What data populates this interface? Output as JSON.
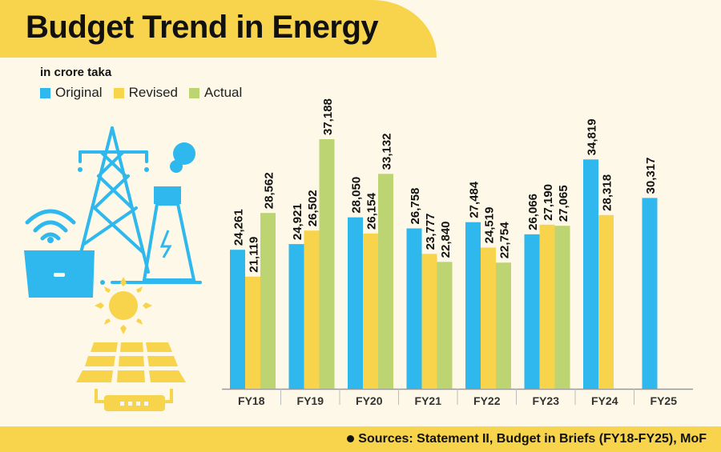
{
  "header": {
    "title": "Budget Trend in Energy",
    "unit": "in crore taka"
  },
  "colors": {
    "original": "#2eb8ee",
    "revised": "#f7d44b",
    "actual": "#bcd472",
    "band": "#f7d44b",
    "background": "#fdf8e7"
  },
  "footer": {
    "source": "Sources: Statement II, Budget in Briefs (FY18-FY25), MoF"
  },
  "chart_data": {
    "type": "bar",
    "title": "Budget Trend in Energy",
    "ylabel": "in crore taka",
    "xlabel": "",
    "categories": [
      "FY18",
      "FY19",
      "FY20",
      "FY21",
      "FY22",
      "FY23",
      "FY24",
      "FY25"
    ],
    "series": [
      {
        "name": "Original",
        "color": "#2eb8ee",
        "values": [
          24261,
          24921,
          28050,
          26758,
          27484,
          26066,
          34819,
          30317
        ],
        "labels": [
          "24,261",
          "24,921",
          "28,050",
          "26,758",
          "27,484",
          "26,066",
          "34,819",
          "30,317"
        ]
      },
      {
        "name": "Revised",
        "color": "#f7d44b",
        "values": [
          21119,
          26502,
          26154,
          23777,
          24519,
          27190,
          28318,
          null
        ],
        "labels": [
          "21,119",
          "26,502",
          "26,154",
          "23,777",
          "24,519",
          "27,190",
          "28,318",
          null
        ]
      },
      {
        "name": "Actual",
        "color": "#bcd472",
        "values": [
          28562,
          37188,
          33132,
          22840,
          22754,
          27065,
          null,
          null
        ],
        "labels": [
          "28,562",
          "37,188",
          "33,132",
          "22,840",
          "22,754",
          "27,065",
          null,
          null
        ]
      }
    ],
    "ylim": [
      8000,
      40000
    ],
    "grid": false,
    "legend": "top-left"
  }
}
